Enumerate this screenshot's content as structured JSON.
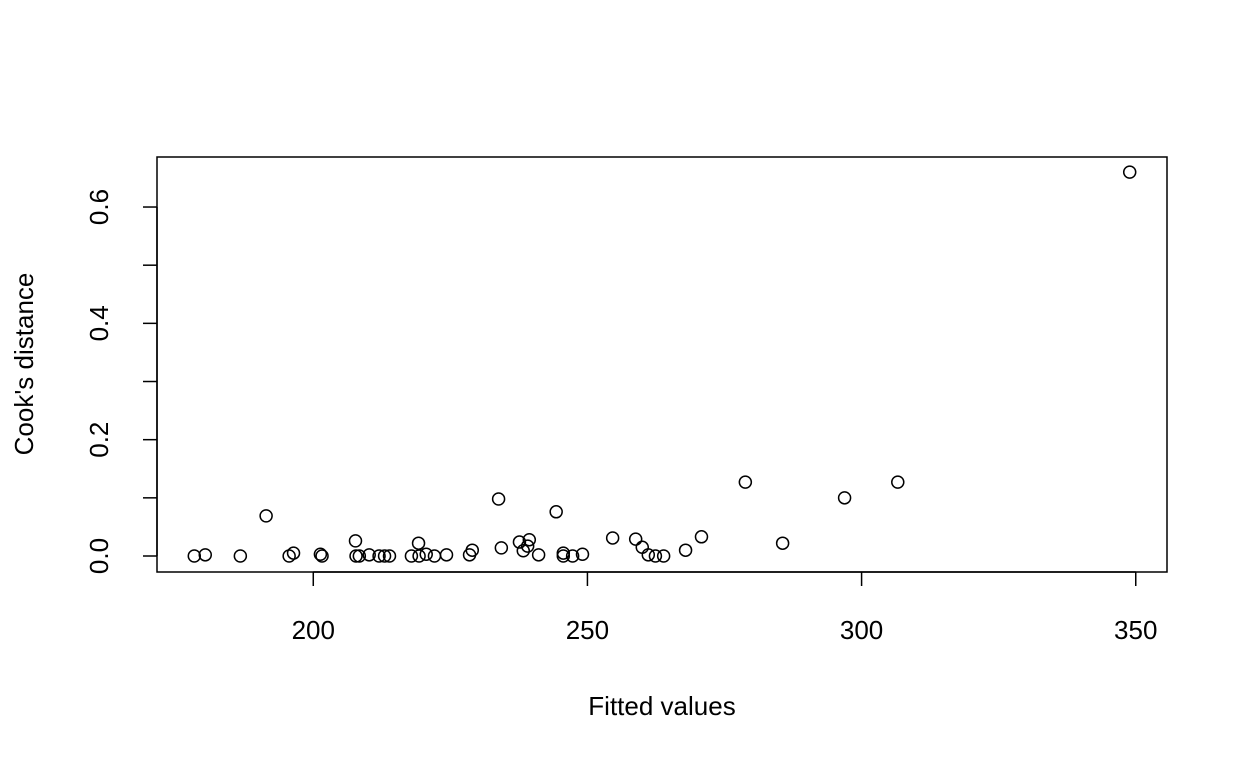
{
  "chart_data": {
    "type": "scatter",
    "x_label": "Fitted values",
    "y_label": "Cook's distance",
    "x": [
      178.3,
      180.3,
      186.7,
      191.4,
      195.6,
      196.4,
      201.3,
      201.6,
      207.7,
      207.8,
      208.4,
      210.2,
      212.0,
      213.0,
      213.9,
      217.9,
      219.2,
      219.3,
      220.6,
      222.1,
      224.3,
      228.5,
      229.0,
      233.8,
      234.3,
      237.6,
      238.3,
      239.1,
      239.4,
      241.1,
      244.3,
      245.6,
      245.6,
      247.3,
      249.1,
      254.6,
      258.8,
      260.0,
      261.1,
      262.4,
      263.9,
      267.9,
      270.8,
      278.8,
      285.6,
      296.9,
      306.6,
      348.9
    ],
    "values": [
      0,
      0.002,
      0,
      0.069,
      0,
      0.005,
      0.003,
      0,
      0.026,
      0,
      0,
      0.002,
      0,
      0,
      0,
      0,
      0.022,
      0,
      0.003,
      0,
      0.002,
      0.002,
      0.01,
      0.098,
      0.014,
      0.024,
      0.009,
      0.017,
      0.028,
      0.002,
      0.076,
      0.005,
      0,
      0,
      0.003,
      0.031,
      0.029,
      0.015,
      0.002,
      0,
      0,
      0.01,
      0.033,
      0.127,
      0.022,
      0.1,
      0.127,
      0.66
    ],
    "color": "#000000",
    "xlim": [
      171.5,
      355.7
    ],
    "ylim": [
      -0.0275,
      0.686
    ],
    "xticks": [
      200,
      250,
      300,
      350
    ],
    "yticks": [
      {
        "value": 0,
        "label": "0.0"
      },
      {
        "value": 0.2,
        "label": "0.2"
      },
      {
        "value": 0.4,
        "label": "0.4"
      },
      {
        "value": 0.6,
        "label": "0.6"
      }
    ],
    "yminor_ticks": [
      0.1,
      0.3,
      0.5
    ]
  }
}
